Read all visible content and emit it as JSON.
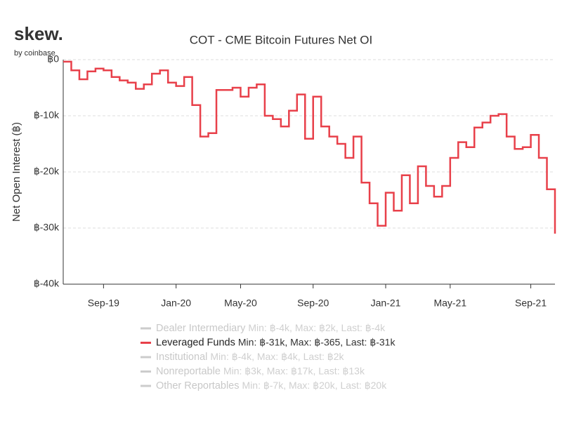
{
  "brand": {
    "name": "skew.",
    "byline": "by coinbase"
  },
  "chart_data": {
    "type": "step",
    "title": "COT - CME Bitcoin Futures Net OI",
    "y_label": "Net Open Interest (฿)",
    "categories": [
      null,
      null,
      null,
      null,
      null,
      "Sep-19",
      null,
      null,
      null,
      null,
      null,
      null,
      null,
      null,
      "Jan-20",
      null,
      null,
      null,
      null,
      null,
      null,
      null,
      "May-20",
      null,
      null,
      null,
      null,
      null,
      null,
      null,
      null,
      "Sep-20",
      null,
      null,
      null,
      null,
      null,
      null,
      null,
      null,
      "Jan-21",
      null,
      null,
      null,
      null,
      null,
      null,
      null,
      "May-21",
      null,
      null,
      null,
      null,
      null,
      null,
      null,
      null,
      null,
      "Sep-21",
      null,
      null,
      null
    ],
    "series": [
      {
        "name": "Dealer Intermediary",
        "stats": "Min: ฿-4k, Max: ฿2k, Last: ฿-4k",
        "color": "#cccccc",
        "visible": false
      },
      {
        "name": "Leveraged Funds",
        "stats": "Min: ฿-31k, Max: ฿-365, Last: ฿-31k",
        "color": "#e8404a",
        "visible": true,
        "values": [
          -365,
          -1900,
          -3500,
          -2100,
          -1600,
          -1900,
          -3100,
          -3700,
          -4100,
          -5200,
          -4400,
          -2500,
          -1900,
          -4100,
          -4700,
          -3100,
          -8100,
          -13700,
          -13100,
          -5400,
          -5400,
          -5000,
          -6600,
          -5000,
          -4400,
          -10000,
          -10600,
          -11900,
          -9100,
          -6200,
          -14100,
          -6600,
          -11900,
          -13700,
          -15000,
          -17500,
          -13700,
          -21900,
          -25600,
          -29600,
          -23700,
          -26900,
          -20600,
          -25600,
          -19000,
          -22500,
          -24400,
          -22500,
          -17500,
          -14700,
          -15600,
          -12100,
          -11200,
          -10000,
          -9700,
          -13700,
          -15900,
          -15600,
          -13400,
          -17500,
          -23100,
          -31000
        ]
      },
      {
        "name": "Institutional",
        "stats": "Min: ฿-4k, Max: ฿4k, Last: ฿2k",
        "color": "#cccccc",
        "visible": false
      },
      {
        "name": "Nonreportable",
        "stats": "Min: ฿3k, Max: ฿17k, Last: ฿13k",
        "color": "#cccccc",
        "visible": false
      },
      {
        "name": "Other Reportables",
        "stats": "Min: ฿-7k, Max: ฿20k, Last: ฿20k",
        "color": "#cccccc",
        "visible": false
      }
    ],
    "ylim": [
      -40000,
      0
    ],
    "yticks": [
      {
        "value": 0,
        "label": "฿0"
      },
      {
        "value": -10000,
        "label": "฿-10k"
      },
      {
        "value": -20000,
        "label": "฿-20k"
      },
      {
        "value": -30000,
        "label": "฿-30k"
      },
      {
        "value": -40000,
        "label": "฿-40k"
      }
    ],
    "grid": true
  }
}
